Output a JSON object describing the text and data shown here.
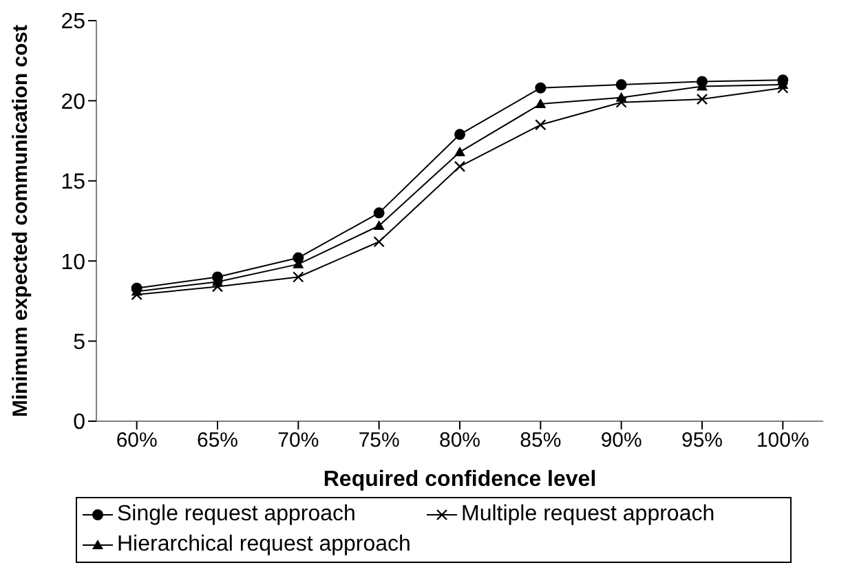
{
  "chart_data": {
    "type": "line",
    "xlabel": "Required confidence level",
    "ylabel": "Minimum expected communication cost",
    "categories": [
      "60%",
      "65%",
      "70%",
      "75%",
      "80%",
      "85%",
      "90%",
      "95%",
      "100%"
    ],
    "ylim": [
      0,
      25
    ],
    "yticks": [
      0,
      5,
      10,
      15,
      20,
      25
    ],
    "grid": false,
    "legend": "bottom",
    "series": [
      {
        "name": "Single request approach",
        "color": "#000000",
        "marker": "circle",
        "values": [
          8.3,
          9.0,
          10.2,
          13.0,
          17.9,
          20.8,
          21.0,
          21.2,
          21.3
        ]
      },
      {
        "name": "Multiple request approach",
        "color": "#000000",
        "marker": "cross",
        "values": [
          7.9,
          8.4,
          9.0,
          11.2,
          15.9,
          18.5,
          19.9,
          20.1,
          20.8
        ]
      },
      {
        "name": "Hierarchical request approach",
        "color": "#000000",
        "marker": "triangle",
        "values": [
          8.1,
          8.7,
          9.8,
          12.2,
          16.8,
          19.8,
          20.2,
          20.9,
          21.0
        ]
      }
    ]
  }
}
